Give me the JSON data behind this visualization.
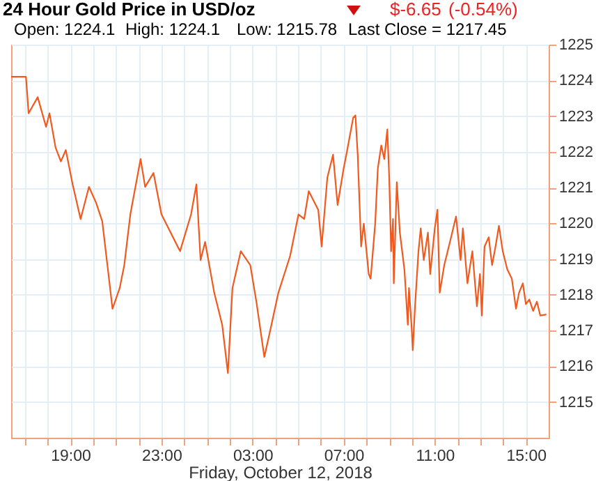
{
  "chart_data": {
    "type": "line",
    "title": "24 Hour Gold Price in USD/oz",
    "xlabel": "Friday, October 12, 2018",
    "annotations": [
      "Open: 1224.1",
      "High: 1224.1",
      "Low: 1215.78",
      "Last Close = 1217.45",
      "$-6.65",
      "(-0.54%)"
    ],
    "xlim": [
      "2018-10-11T16:24",
      "2018-10-12T16:00"
    ],
    "ylim": [
      1214,
      1225
    ],
    "xticks": [
      {
        "value": "2018-10-11T17:00",
        "label": null
      },
      {
        "value": "2018-10-11T18:00",
        "label": null
      },
      {
        "value": "2018-10-11T19:00",
        "label": "19:00"
      },
      {
        "value": "2018-10-11T20:00",
        "label": null
      },
      {
        "value": "2018-10-11T21:00",
        "label": null
      },
      {
        "value": "2018-10-11T22:00",
        "label": null
      },
      {
        "value": "2018-10-11T23:00",
        "label": "23:00"
      },
      {
        "value": "2018-10-12T00:00",
        "label": null
      },
      {
        "value": "2018-10-12T01:00",
        "label": null
      },
      {
        "value": "2018-10-12T02:00",
        "label": null
      },
      {
        "value": "2018-10-12T03:00",
        "label": "03:00"
      },
      {
        "value": "2018-10-12T04:00",
        "label": null
      },
      {
        "value": "2018-10-12T05:00",
        "label": null
      },
      {
        "value": "2018-10-12T06:00",
        "label": null
      },
      {
        "value": "2018-10-12T07:00",
        "label": "07:00"
      },
      {
        "value": "2018-10-12T08:00",
        "label": null
      },
      {
        "value": "2018-10-12T09:00",
        "label": null
      },
      {
        "value": "2018-10-12T10:00",
        "label": null
      },
      {
        "value": "2018-10-12T11:00",
        "label": "11:00"
      },
      {
        "value": "2018-10-12T12:00",
        "label": null
      },
      {
        "value": "2018-10-12T13:00",
        "label": null
      },
      {
        "value": "2018-10-12T14:00",
        "label": null
      },
      {
        "value": "2018-10-12T15:00",
        "label": "15:00"
      }
    ],
    "yticks": [
      1215,
      1216,
      1217,
      1218,
      1219,
      1220,
      1221,
      1222,
      1223,
      1224,
      1225
    ],
    "grid": true,
    "x": [
      "2018-10-11T16:24",
      "2018-10-11T17:03",
      "2018-10-11T17:10",
      "2018-10-11T17:34",
      "2018-10-11T17:56",
      "2018-10-11T18:05",
      "2018-10-11T18:21",
      "2018-10-11T18:35",
      "2018-10-11T18:48",
      "2018-10-11T19:06",
      "2018-10-11T19:27",
      "2018-10-11T19:49",
      "2018-10-11T20:08",
      "2018-10-11T20:24",
      "2018-10-11T20:36",
      "2018-10-11T20:51",
      "2018-10-11T21:10",
      "2018-10-11T21:22",
      "2018-10-11T21:38",
      "2018-10-11T22:05",
      "2018-10-11T22:17",
      "2018-10-11T22:39",
      "2018-10-11T23:00",
      "2018-10-11T23:49",
      "2018-10-12T00:18",
      "2018-10-12T00:32",
      "2018-10-12T00:43",
      "2018-10-12T00:55",
      "2018-10-12T01:19",
      "2018-10-12T01:40",
      "2018-10-12T01:55",
      "2018-10-12T02:07",
      "2018-10-12T02:29",
      "2018-10-12T02:54",
      "2018-10-12T03:10",
      "2018-10-12T03:31",
      "2018-10-12T03:47",
      "2018-10-12T04:08",
      "2018-10-12T04:39",
      "2018-10-12T05:01",
      "2018-10-12T05:16",
      "2018-10-12T05:28",
      "2018-10-12T05:53",
      "2018-10-12T06:02",
      "2018-10-12T06:17",
      "2018-10-12T06:32",
      "2018-10-12T06:44",
      "2018-10-12T07:00",
      "2018-10-12T07:07",
      "2018-10-12T07:25",
      "2018-10-12T07:31",
      "2018-10-12T07:37",
      "2018-10-12T07:46",
      "2018-10-12T07:53",
      "2018-10-12T08:06",
      "2018-10-12T08:11",
      "2018-10-12T08:23",
      "2018-10-12T08:30",
      "2018-10-12T08:39",
      "2018-10-12T08:47",
      "2018-10-12T08:55",
      "2018-10-12T09:00",
      "2018-10-12T09:05",
      "2018-10-12T09:10",
      "2018-10-12T09:12",
      "2018-10-12T09:20",
      "2018-10-12T09:28",
      "2018-10-12T09:40",
      "2018-10-12T09:49",
      "2018-10-12T09:52",
      "2018-10-12T09:59",
      "2018-10-12T10:02",
      "2018-10-12T10:08",
      "2018-10-12T10:17",
      "2018-10-12T10:23",
      "2018-10-12T10:31",
      "2018-10-12T10:42",
      "2018-10-12T10:48",
      "2018-10-12T11:00",
      "2018-10-12T11:07",
      "2018-10-12T11:13",
      "2018-10-12T11:25",
      "2018-10-12T11:40",
      "2018-10-12T11:56",
      "2018-10-12T12:08",
      "2018-10-12T12:14",
      "2018-10-12T12:26",
      "2018-10-12T12:39",
      "2018-10-12T12:51",
      "2018-10-12T12:59",
      "2018-10-12T13:04",
      "2018-10-12T13:11",
      "2018-10-12T13:22",
      "2018-10-12T13:31",
      "2018-10-12T13:40",
      "2018-10-12T13:49",
      "2018-10-12T13:59",
      "2018-10-12T14:11",
      "2018-10-12T14:23",
      "2018-10-12T14:34",
      "2018-10-12T14:42",
      "2018-10-12T14:52",
      "2018-10-12T15:00",
      "2018-10-12T15:09",
      "2018-10-12T15:19",
      "2018-10-12T15:29",
      "2018-10-12T15:38",
      "2018-10-12T15:54"
    ],
    "series": [
      {
        "color": "#f05a1e",
        "values": [
          1224.1,
          1224.1,
          1223.08,
          1223.53,
          1222.7,
          1223.08,
          1222.12,
          1221.73,
          1222.05,
          1221.09,
          1220.12,
          1221.02,
          1220.57,
          1220.06,
          1218.97,
          1217.61,
          1218.19,
          1218.83,
          1220.25,
          1221.8,
          1221.02,
          1221.41,
          1220.25,
          1219.22,
          1220.25,
          1221.09,
          1218.97,
          1219.48,
          1218.06,
          1217.16,
          1215.81,
          1218.19,
          1219.22,
          1218.83,
          1217.81,
          1216.26,
          1217.03,
          1218.06,
          1219.09,
          1220.25,
          1220.12,
          1220.9,
          1220.38,
          1219.35,
          1221.28,
          1221.92,
          1220.51,
          1221.54,
          1221.92,
          1222.95,
          1223.02,
          1221.92,
          1219.35,
          1219.99,
          1218.58,
          1218.45,
          1219.99,
          1221.54,
          1222.18,
          1221.8,
          1222.63,
          1221.28,
          1219.22,
          1220.12,
          1218.32,
          1221.15,
          1219.74,
          1218.71,
          1217.16,
          1218.19,
          1217.1,
          1216.45,
          1217.68,
          1219.22,
          1219.86,
          1218.97,
          1219.74,
          1218.58,
          1219.86,
          1220.38,
          1218.06,
          1218.83,
          1219.48,
          1220.19,
          1218.97,
          1219.86,
          1218.32,
          1219.22,
          1217.68,
          1218.58,
          1217.42,
          1219.35,
          1219.61,
          1218.83,
          1219.35,
          1219.93,
          1219.22,
          1218.71,
          1218.45,
          1217.61,
          1218.06,
          1218.32,
          1217.74,
          1217.87,
          1217.55,
          1217.81,
          1217.42,
          1217.45
        ]
      }
    ]
  }
}
